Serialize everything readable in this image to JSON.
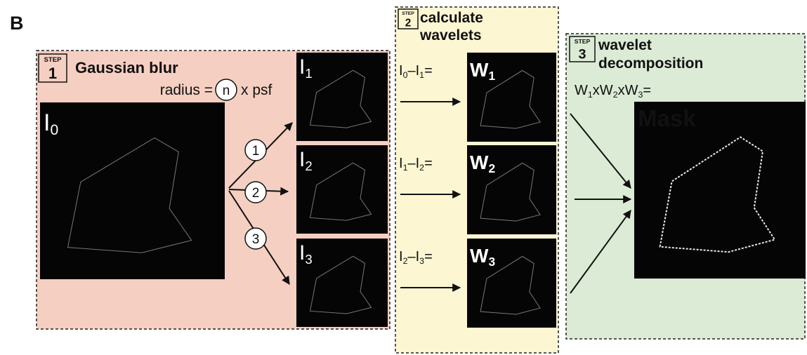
{
  "panel_label": "B",
  "step1": {
    "step_word": "STEP",
    "number": "1",
    "title": "Gaussian blur",
    "radius_prefix": "radius =",
    "radius_n": "n",
    "radius_suffix": "x psf",
    "input": {
      "t": "I",
      "s": "0"
    },
    "branches": [
      "1",
      "2",
      "3"
    ],
    "outputs": [
      {
        "t": "I",
        "s": "1"
      },
      {
        "t": "I",
        "s": "2"
      },
      {
        "t": "I",
        "s": "3"
      }
    ]
  },
  "step2": {
    "step_word": "STEP",
    "number": "2",
    "title_lines": [
      "calculate",
      "wavelets"
    ],
    "equations": [
      {
        "parts": [
          {
            "t": "I",
            "s": "0"
          },
          {
            "t": "–I",
            "s": "1"
          },
          {
            "t": "="
          }
        ],
        "w": {
          "t": "W",
          "s": "1"
        }
      },
      {
        "parts": [
          {
            "t": "I",
            "s": "1"
          },
          {
            "t": "–I",
            "s": "2"
          },
          {
            "t": "="
          }
        ],
        "w": {
          "t": "W",
          "s": "2"
        }
      },
      {
        "parts": [
          {
            "t": "I",
            "s": "2"
          },
          {
            "t": "–I",
            "s": "3"
          },
          {
            "t": "="
          }
        ],
        "w": {
          "t": "W",
          "s": "3"
        }
      }
    ]
  },
  "step3": {
    "step_word": "STEP",
    "number": "3",
    "title_lines": [
      "wavelet",
      "decomposition"
    ],
    "product": [
      {
        "t": "W",
        "s": "1"
      },
      {
        "t": "xW",
        "s": "2"
      },
      {
        "t": "xW",
        "s": "3"
      },
      {
        "t": "="
      }
    ],
    "mask": "Mask"
  }
}
